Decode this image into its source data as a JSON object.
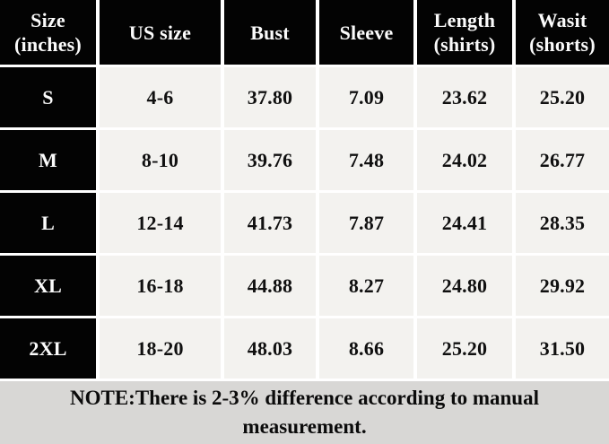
{
  "chart_data": {
    "type": "table",
    "columns": [
      "Size\n(inches)",
      "US size",
      "Bust",
      "Sleeve",
      "Length\n(shirts)",
      "Wasit\n(shorts)"
    ],
    "rows": [
      [
        "S",
        "4-6",
        "37.80",
        "7.09",
        "23.62",
        "25.20"
      ],
      [
        "M",
        "8-10",
        "39.76",
        "7.48",
        "24.02",
        "26.77"
      ],
      [
        "L",
        "12-14",
        "41.73",
        "7.87",
        "24.41",
        "28.35"
      ],
      [
        "XL",
        "16-18",
        "44.88",
        "8.27",
        "24.80",
        "29.92"
      ],
      [
        "2XL",
        "18-20",
        "48.03",
        "8.66",
        "25.20",
        "31.50"
      ]
    ],
    "note": "NOTE:There is 2-3% difference according to manual measurement.",
    "layout": {
      "header_background": "#030303",
      "header_text_color": "#fbfbfb",
      "row_header_column": "Size (inches)",
      "cell_background": "#f3f2ef",
      "cell_text_color": "#101010",
      "grid_line_color": "#ffffff",
      "note_background": "#d8d7d5"
    }
  }
}
